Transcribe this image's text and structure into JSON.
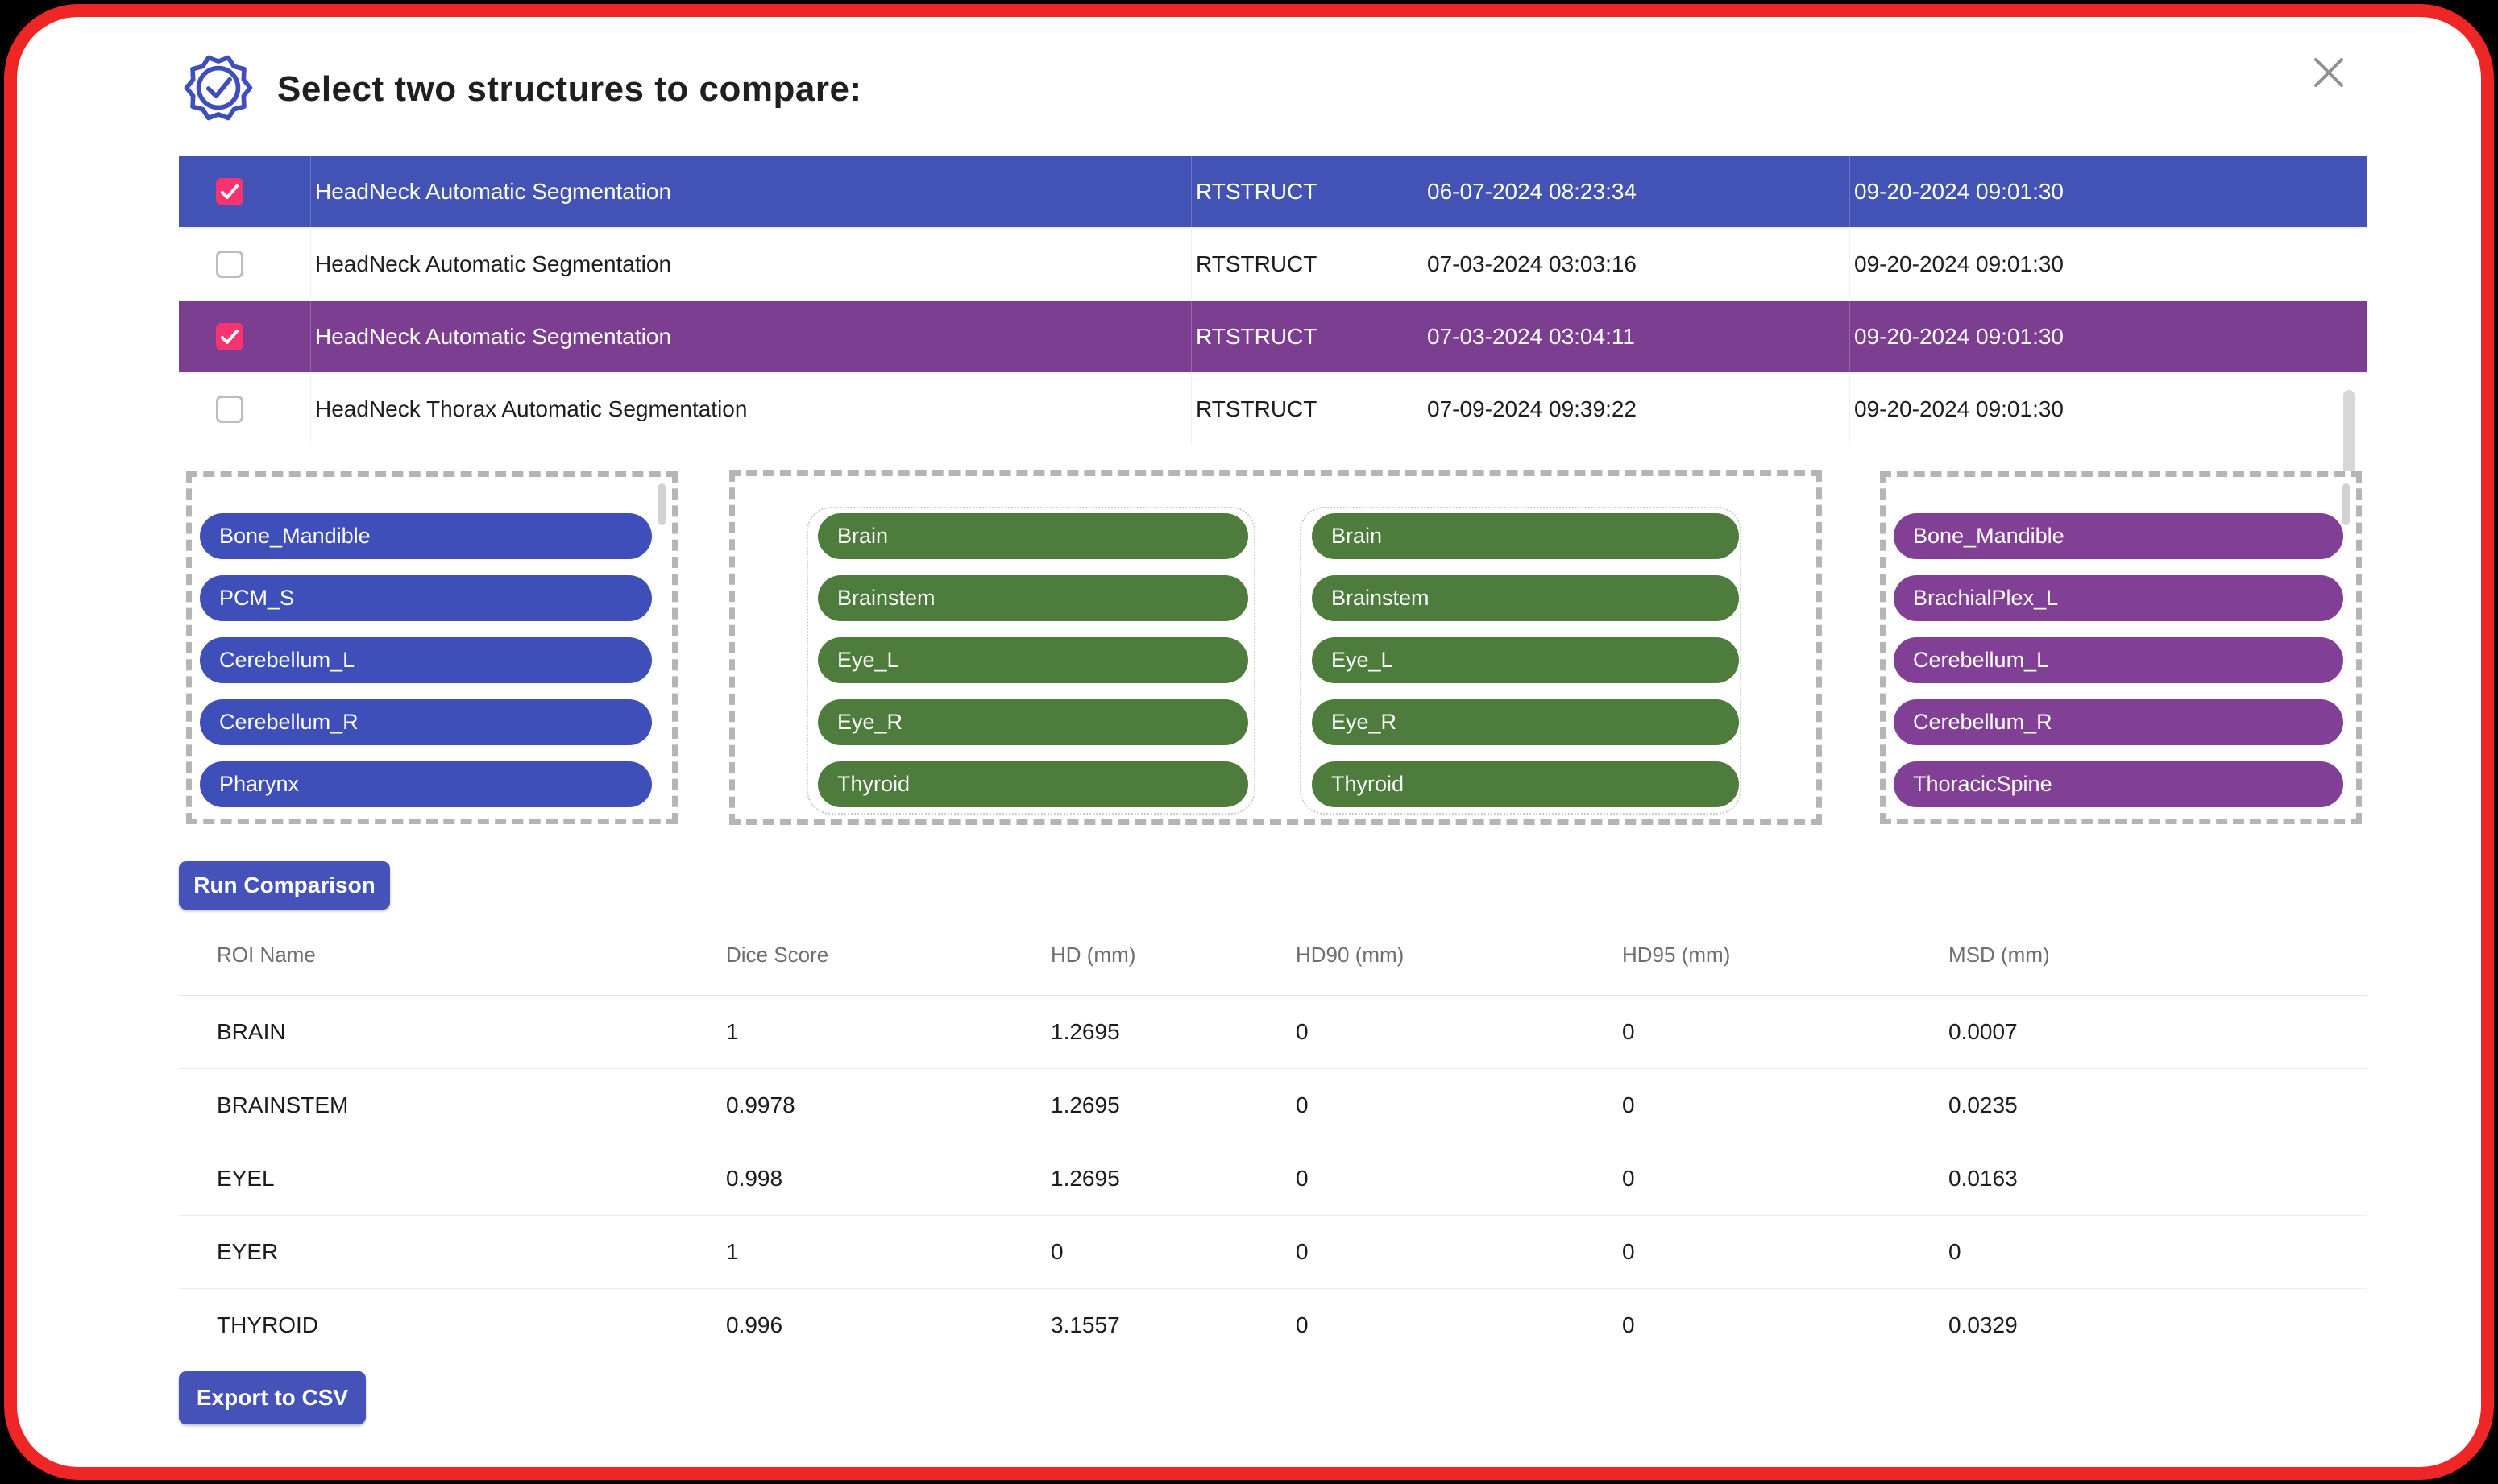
{
  "dialog": {
    "title": "Select two structures to compare:",
    "badge_icon": "certificate-check-badge",
    "close_icon": "close-x"
  },
  "colors": {
    "frame_red": "#EE2626",
    "blue_row": "#4353B5",
    "blue_pill": "#3E4FBA",
    "purple_row": "#7C3E90",
    "purple_pill": "#823F96",
    "green_pill": "#4D7C3C",
    "checkbox_pink": "#F7346F",
    "button_blue": "#4452B9"
  },
  "series_list": {
    "rows": [
      {
        "checked": true,
        "highlight": "blue",
        "name": "HeadNeck Automatic Segmentation",
        "type": "RTSTRUCT",
        "date1": "06-07-2024 08:23:34",
        "date2": "09-20-2024 09:01:30"
      },
      {
        "checked": false,
        "highlight": "none",
        "name": "HeadNeck Automatic Segmentation",
        "type": "RTSTRUCT",
        "date1": "07-03-2024 03:03:16",
        "date2": "09-20-2024 09:01:30"
      },
      {
        "checked": true,
        "highlight": "purple",
        "name": "HeadNeck Automatic Segmentation",
        "type": "RTSTRUCT",
        "date1": "07-03-2024 03:04:11",
        "date2": "09-20-2024 09:01:30"
      },
      {
        "checked": false,
        "highlight": "none",
        "name": "HeadNeck Thorax Automatic Segmentation",
        "type": "RTSTRUCT",
        "date1": "07-09-2024 09:39:22",
        "date2": "09-20-2024 09:01:30"
      }
    ]
  },
  "structure_panels": {
    "left_blue": {
      "items": [
        "Bone_Mandible",
        "PCM_S",
        "Cerebellum_L",
        "Cerebellum_R",
        "Pharynx"
      ]
    },
    "middle_green_a": {
      "items": [
        "Brain",
        "Brainstem",
        "Eye_L",
        "Eye_R",
        "Thyroid"
      ]
    },
    "middle_green_b": {
      "items": [
        "Brain",
        "Brainstem",
        "Eye_L",
        "Eye_R",
        "Thyroid"
      ]
    },
    "right_purple": {
      "items": [
        "Bone_Mandible",
        "BrachialPlex_L",
        "Cerebellum_L",
        "Cerebellum_R",
        "ThoracicSpine"
      ]
    }
  },
  "buttons": {
    "run_comparison": "Run Comparison",
    "export_csv": "Export to CSV"
  },
  "results_table": {
    "headers": [
      "ROI Name",
      "Dice Score",
      "HD (mm)",
      "HD90 (mm)",
      "HD95 (mm)",
      "MSD (mm)"
    ],
    "rows": [
      [
        "BRAIN",
        "1",
        "1.2695",
        "0",
        "0",
        "0.0007"
      ],
      [
        "BRAINSTEM",
        "0.9978",
        "1.2695",
        "0",
        "0",
        "0.0235"
      ],
      [
        "EYEL",
        "0.998",
        "1.2695",
        "0",
        "0",
        "0.0163"
      ],
      [
        "EYER",
        "1",
        "0",
        "0",
        "0",
        "0"
      ],
      [
        "THYROID",
        "0.996",
        "3.1557",
        "0",
        "0",
        "0.0329"
      ]
    ]
  }
}
